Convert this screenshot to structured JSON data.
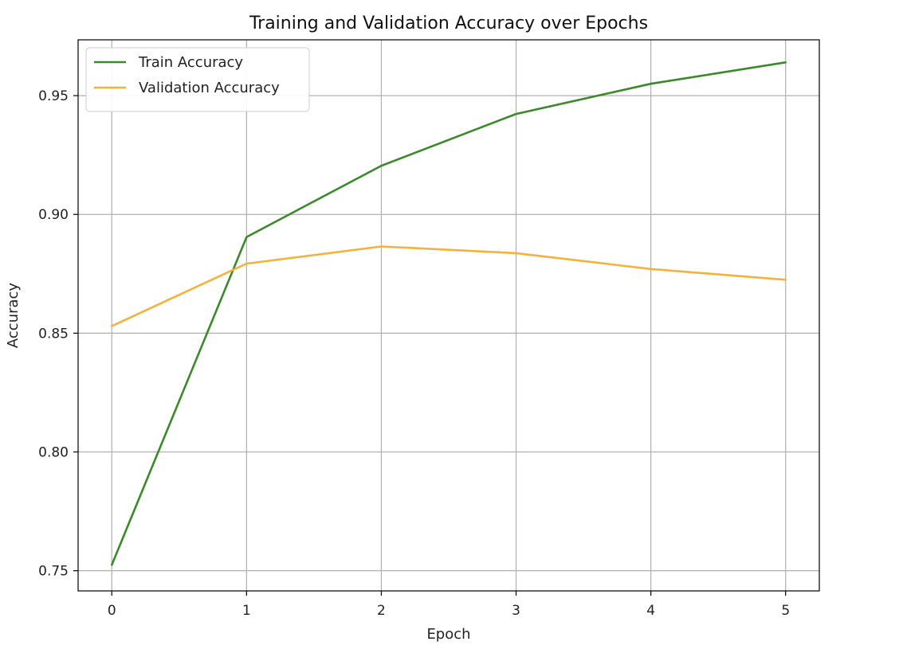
{
  "chart_data": {
    "type": "line",
    "title": "Training and Validation Accuracy over Epochs",
    "xlabel": "Epoch",
    "ylabel": "Accuracy",
    "x": [
      0,
      1,
      2,
      3,
      4,
      5
    ],
    "xticks": [
      "0",
      "1",
      "2",
      "3",
      "4",
      "5"
    ],
    "yticks": [
      "0.75",
      "0.80",
      "0.85",
      "0.90",
      "0.95"
    ],
    "ytick_values": [
      0.75,
      0.8,
      0.85,
      0.9,
      0.95
    ],
    "xlim": [
      -0.25,
      5.25
    ],
    "ylim": [
      0.7415,
      0.9735
    ],
    "grid": true,
    "legend_position": "top-left",
    "series": [
      {
        "name": "Train Accuracy",
        "color": "#3a8a2a",
        "values": [
          0.7525,
          0.8905,
          0.9205,
          0.9423,
          0.955,
          0.964
        ]
      },
      {
        "name": "Validation Accuracy",
        "color": "#f4b23c",
        "values": [
          0.853,
          0.8793,
          0.8865,
          0.8837,
          0.877,
          0.8725
        ]
      }
    ]
  }
}
